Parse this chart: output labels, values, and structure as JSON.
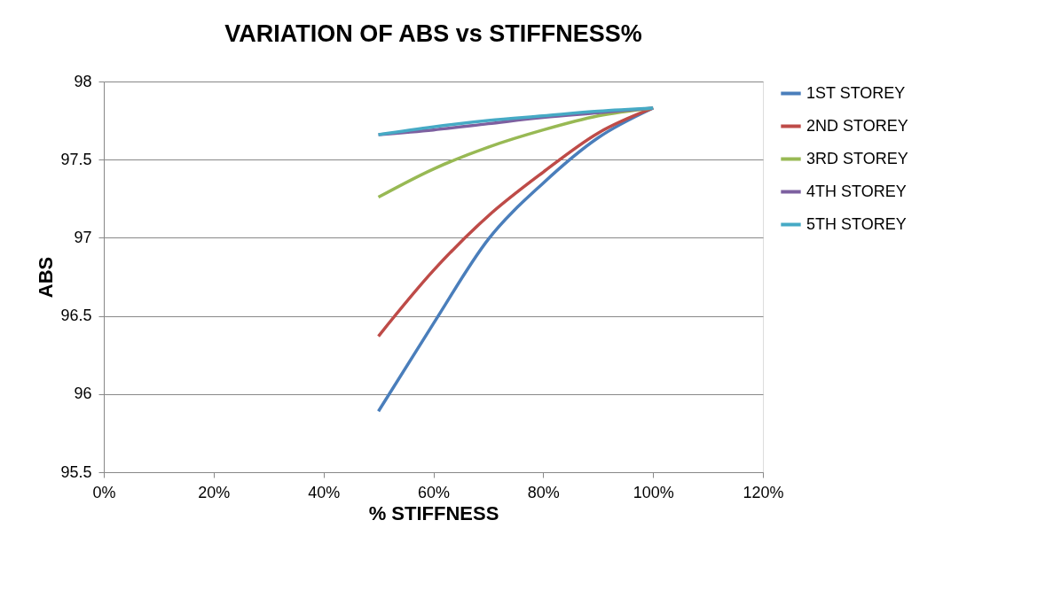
{
  "chart_data": {
    "type": "line",
    "title": "VARIATION OF ABS vs STIFFNESS%",
    "xlabel": "% STIFFNESS",
    "ylabel": "ABS",
    "x": [
      50,
      60,
      70,
      80,
      90,
      100
    ],
    "series": [
      {
        "name": "1ST STOREY",
        "color": "#4a7ebb",
        "values": [
          95.89,
          96.45,
          96.99,
          97.35,
          97.64,
          97.83
        ]
      },
      {
        "name": "2ND STOREY",
        "color": "#be4b48",
        "values": [
          96.37,
          96.79,
          97.14,
          97.42,
          97.67,
          97.83
        ]
      },
      {
        "name": "3RD STOREY",
        "color": "#98b954",
        "values": [
          97.26,
          97.44,
          97.58,
          97.69,
          97.78,
          97.83
        ]
      },
      {
        "name": "4TH STOREY",
        "color": "#7d60a0",
        "values": [
          97.66,
          97.69,
          97.73,
          97.77,
          97.8,
          97.83
        ]
      },
      {
        "name": "5TH STOREY",
        "color": "#46aac5",
        "values": [
          97.66,
          97.71,
          97.75,
          97.78,
          97.81,
          97.83
        ]
      }
    ],
    "xlim": [
      0,
      120
    ],
    "xticks": [
      {
        "value": 0,
        "label": "0%"
      },
      {
        "value": 20,
        "label": "20%"
      },
      {
        "value": 40,
        "label": "40%"
      },
      {
        "value": 60,
        "label": "60%"
      },
      {
        "value": 80,
        "label": "80%"
      },
      {
        "value": 100,
        "label": "100%"
      },
      {
        "value": 120,
        "label": "120%"
      }
    ],
    "ylim": [
      95.5,
      98
    ],
    "yticks": [
      95.5,
      96,
      96.5,
      97,
      97.5,
      98
    ],
    "grid": "y",
    "legend": "right",
    "marker": "none",
    "line_style": "solid"
  }
}
